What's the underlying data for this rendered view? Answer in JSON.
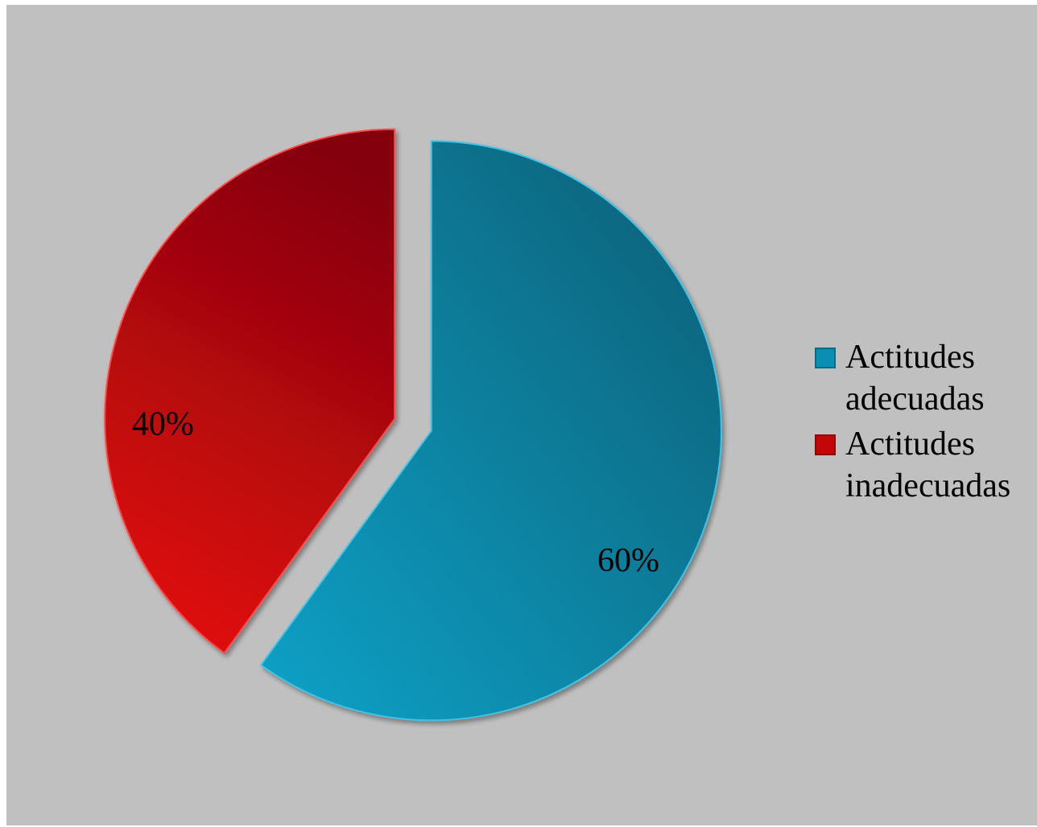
{
  "chart_data": {
    "type": "pie",
    "title": "",
    "slices": [
      {
        "label": "Actitudes adecuadas",
        "value": 60,
        "display": "60%",
        "color": "#0a8fb3"
      },
      {
        "label": "Actitudes inadecuadas",
        "value": 40,
        "display": "40%",
        "color": "#c30707"
      }
    ],
    "exploded": true,
    "legend_position": "right"
  }
}
